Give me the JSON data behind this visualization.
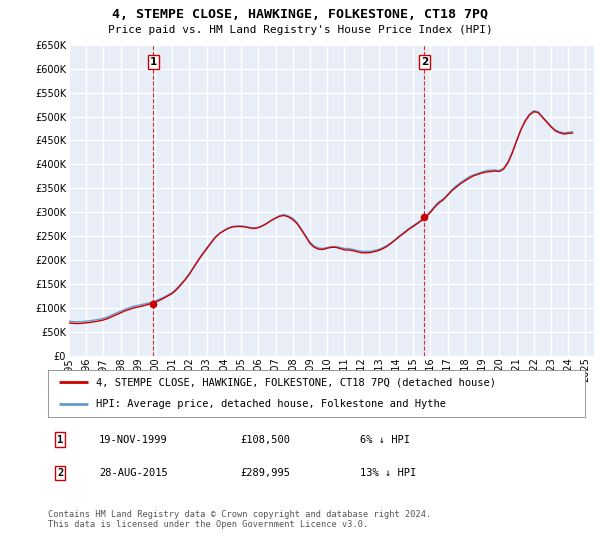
{
  "title": "4, STEMPE CLOSE, HAWKINGE, FOLKESTONE, CT18 7PQ",
  "subtitle": "Price paid vs. HM Land Registry's House Price Index (HPI)",
  "fig_bg_color": "#ffffff",
  "plot_bg_color": "#e8eef8",
  "grid_color": "#ffffff",
  "ylim": [
    0,
    650000
  ],
  "yticks": [
    0,
    50000,
    100000,
    150000,
    200000,
    250000,
    300000,
    350000,
    400000,
    450000,
    500000,
    550000,
    600000,
    650000
  ],
  "xlim_start": 1995,
  "xlim_end": 2025.5,
  "xticks": [
    1995,
    1996,
    1997,
    1998,
    1999,
    2000,
    2001,
    2002,
    2003,
    2004,
    2005,
    2006,
    2007,
    2008,
    2009,
    2010,
    2011,
    2012,
    2013,
    2014,
    2015,
    2016,
    2017,
    2018,
    2019,
    2020,
    2021,
    2022,
    2023,
    2024,
    2025
  ],
  "sale1_x": 1999.88,
  "sale1_y": 108500,
  "sale1_label": "1",
  "sale1_date": "19-NOV-1999",
  "sale1_price": "£108,500",
  "sale1_hpi": "6% ↓ HPI",
  "sale2_x": 2015.65,
  "sale2_y": 289995,
  "sale2_label": "2",
  "sale2_date": "28-AUG-2015",
  "sale2_price": "£289,995",
  "sale2_hpi": "13% ↓ HPI",
  "line_color_property": "#cc0000",
  "line_color_hpi": "#6699cc",
  "legend_label_property": "4, STEMPE CLOSE, HAWKINGE, FOLKESTONE, CT18 7PQ (detached house)",
  "legend_label_hpi": "HPI: Average price, detached house, Folkestone and Hythe",
  "footer": "Contains HM Land Registry data © Crown copyright and database right 2024.\nThis data is licensed under the Open Government Licence v3.0.",
  "hpi_years": [
    1995.0,
    1995.25,
    1995.5,
    1995.75,
    1996.0,
    1996.25,
    1996.5,
    1996.75,
    1997.0,
    1997.25,
    1997.5,
    1997.75,
    1998.0,
    1998.25,
    1998.5,
    1998.75,
    1999.0,
    1999.25,
    1999.5,
    1999.75,
    2000.0,
    2000.25,
    2000.5,
    2000.75,
    2001.0,
    2001.25,
    2001.5,
    2001.75,
    2002.0,
    2002.25,
    2002.5,
    2002.75,
    2003.0,
    2003.25,
    2003.5,
    2003.75,
    2004.0,
    2004.25,
    2004.5,
    2004.75,
    2005.0,
    2005.25,
    2005.5,
    2005.75,
    2006.0,
    2006.25,
    2006.5,
    2006.75,
    2007.0,
    2007.25,
    2007.5,
    2007.75,
    2008.0,
    2008.25,
    2008.5,
    2008.75,
    2009.0,
    2009.25,
    2009.5,
    2009.75,
    2010.0,
    2010.25,
    2010.5,
    2010.75,
    2011.0,
    2011.25,
    2011.5,
    2011.75,
    2012.0,
    2012.25,
    2012.5,
    2012.75,
    2013.0,
    2013.25,
    2013.5,
    2013.75,
    2014.0,
    2014.25,
    2014.5,
    2014.75,
    2015.0,
    2015.25,
    2015.5,
    2015.75,
    2016.0,
    2016.25,
    2016.5,
    2016.75,
    2017.0,
    2017.25,
    2017.5,
    2017.75,
    2018.0,
    2018.25,
    2018.5,
    2018.75,
    2019.0,
    2019.25,
    2019.5,
    2019.75,
    2020.0,
    2020.25,
    2020.5,
    2020.75,
    2021.0,
    2021.25,
    2021.5,
    2021.75,
    2022.0,
    2022.25,
    2022.5,
    2022.75,
    2023.0,
    2023.25,
    2023.5,
    2023.75,
    2024.0,
    2024.25
  ],
  "hpi_values": [
    72000,
    71000,
    70500,
    71000,
    72000,
    73000,
    74500,
    76000,
    78000,
    81000,
    85000,
    89000,
    93000,
    97000,
    100000,
    103000,
    105000,
    107000,
    109000,
    111000,
    114000,
    118000,
    122000,
    127000,
    132000,
    140000,
    150000,
    160000,
    172000,
    186000,
    200000,
    213000,
    225000,
    237000,
    248000,
    256000,
    262000,
    267000,
    270000,
    271000,
    271000,
    270000,
    268000,
    267000,
    268000,
    272000,
    277000,
    283000,
    288000,
    293000,
    295000,
    292000,
    287000,
    278000,
    265000,
    251000,
    237000,
    229000,
    225000,
    224000,
    226000,
    228000,
    228000,
    226000,
    224000,
    224000,
    222000,
    220000,
    218000,
    218000,
    218000,
    220000,
    222000,
    226000,
    231000,
    237000,
    244000,
    252000,
    259000,
    266000,
    272000,
    278000,
    284000,
    292000,
    302000,
    313000,
    322000,
    328000,
    337000,
    347000,
    355000,
    362000,
    368000,
    374000,
    378000,
    381000,
    384000,
    387000,
    388000,
    388000,
    387000,
    392000,
    405000,
    426000,
    450000,
    473000,
    492000,
    505000,
    512000,
    510000,
    500000,
    490000,
    480000,
    472000,
    468000,
    466000,
    467000,
    468000
  ],
  "prop_years": [
    1995.0,
    1995.25,
    1995.5,
    1995.75,
    1996.0,
    1996.25,
    1996.5,
    1996.75,
    1997.0,
    1997.25,
    1997.5,
    1997.75,
    1998.0,
    1998.25,
    1998.5,
    1998.75,
    1999.0,
    1999.25,
    1999.5,
    1999.75,
    2000.0,
    2000.25,
    2000.5,
    2000.75,
    2001.0,
    2001.25,
    2001.5,
    2001.75,
    2002.0,
    2002.25,
    2002.5,
    2002.75,
    2003.0,
    2003.25,
    2003.5,
    2003.75,
    2004.0,
    2004.25,
    2004.5,
    2004.75,
    2005.0,
    2005.25,
    2005.5,
    2005.75,
    2006.0,
    2006.25,
    2006.5,
    2006.75,
    2007.0,
    2007.25,
    2007.5,
    2007.75,
    2008.0,
    2008.25,
    2008.5,
    2008.75,
    2009.0,
    2009.25,
    2009.5,
    2009.75,
    2010.0,
    2010.25,
    2010.5,
    2010.75,
    2011.0,
    2011.25,
    2011.5,
    2011.75,
    2012.0,
    2012.25,
    2012.5,
    2012.75,
    2013.0,
    2013.25,
    2013.5,
    2013.75,
    2014.0,
    2014.25,
    2014.5,
    2014.75,
    2015.0,
    2015.25,
    2015.5,
    2015.75,
    2016.0,
    2016.25,
    2016.5,
    2016.75,
    2017.0,
    2017.25,
    2017.5,
    2017.75,
    2018.0,
    2018.25,
    2018.5,
    2018.75,
    2019.0,
    2019.25,
    2019.5,
    2019.75,
    2020.0,
    2020.25,
    2020.5,
    2020.75,
    2021.0,
    2021.25,
    2021.5,
    2021.75,
    2022.0,
    2022.25,
    2022.5,
    2022.75,
    2023.0,
    2023.25,
    2023.5,
    2023.75,
    2024.0,
    2024.25
  ],
  "prop_values": [
    68000,
    67500,
    67000,
    67500,
    68500,
    69500,
    71000,
    72500,
    74500,
    77500,
    81500,
    85500,
    89500,
    93500,
    96500,
    99500,
    101500,
    103500,
    106000,
    108500,
    111500,
    115500,
    120000,
    125000,
    130000,
    138000,
    148000,
    158500,
    170500,
    184500,
    198500,
    211500,
    223500,
    235500,
    247000,
    255500,
    261000,
    266000,
    269000,
    270000,
    270000,
    269000,
    267000,
    266000,
    267500,
    271500,
    276500,
    282500,
    287500,
    291500,
    293000,
    290000,
    284500,
    276000,
    263000,
    249000,
    234500,
    226500,
    222500,
    222000,
    224500,
    226500,
    226500,
    224000,
    221000,
    221000,
    219500,
    217000,
    215000,
    215000,
    215500,
    217500,
    220000,
    224000,
    229000,
    236000,
    243000,
    250500,
    257000,
    264500,
    270000,
    276500,
    283000,
    289995,
    299500,
    310500,
    319500,
    326000,
    335500,
    345000,
    352500,
    359500,
    365500,
    371000,
    376000,
    379000,
    382000,
    384000,
    385000,
    386000,
    385000,
    390000,
    403000,
    423500,
    448500,
    472000,
    490000,
    503000,
    510000,
    508500,
    498500,
    488500,
    478500,
    470000,
    466000,
    463500,
    464500,
    465500
  ]
}
